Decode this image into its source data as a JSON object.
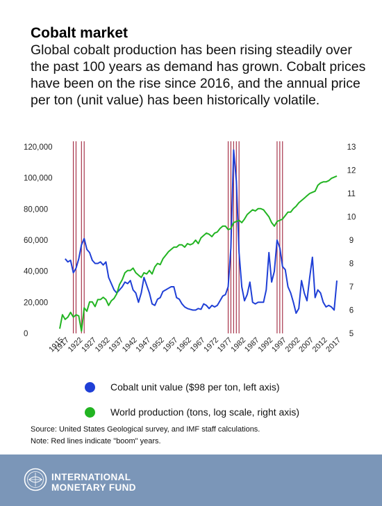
{
  "header": {
    "title": "Cobalt market",
    "subtitle": "Global cobalt production has been rising steadily over the past 100 years as demand has grown. Cobalt prices have been on the rise since 2016, and the annual price per ton (unit value) has been historically volatile."
  },
  "legend": {
    "unit_value_label": "Cobalt unit value ($98 per ton, left axis)",
    "production_label": "World production (tons, log scale, right axis)"
  },
  "notes": {
    "source": "Source: United States Geological survey, and IMF staff calculations.",
    "note": "Note: Red lines indicate \"boom\" years."
  },
  "footer": {
    "org_line1": "INTERNATIONAL",
    "org_line2": "MONETARY FUND",
    "logo_icon": "imf-seal-icon"
  },
  "colors": {
    "unit_value": "#1f3fd6",
    "production": "#22b422",
    "boom_lines": "#a0243c",
    "footer_bg": "#7b96b8"
  },
  "chart_data": {
    "type": "line",
    "title": "",
    "xlabel": "",
    "ylabel_left": "",
    "ylabel_right": "",
    "xlim": [
      1915,
      2017
    ],
    "x_tick_labels": [
      "1915",
      "1917",
      "1922",
      "1927",
      "1932",
      "1937",
      "1942",
      "1947",
      "1952",
      "1957",
      "1962",
      "1967",
      "1972",
      "1977",
      "1982",
      "1987",
      "1992",
      "1997",
      "2002",
      "2007",
      "2012",
      "2017"
    ],
    "y_left": {
      "min": 0,
      "max": 120000,
      "ticks": [
        0,
        20000,
        40000,
        60000,
        80000,
        100000,
        120000
      ],
      "tick_labels": [
        "0",
        "20,000",
        "40,000",
        "60,000",
        "80,000",
        "100,000",
        "120,000"
      ]
    },
    "y_right": {
      "min": 5,
      "max": 13,
      "ticks": [
        5,
        6,
        7,
        8,
        9,
        10,
        11,
        12,
        13
      ],
      "tick_labels": [
        "5",
        "6",
        "7",
        "8",
        "9",
        "10",
        "11",
        "12",
        "13"
      ]
    },
    "boom_years": [
      1920,
      1921,
      1923,
      1924,
      1977,
      1978,
      1979,
      1980,
      1981,
      1995,
      1996,
      1997
    ],
    "series": [
      {
        "name": "Cobalt unit value ($98 per ton, left axis)",
        "axis": "left",
        "points": [
          [
            1917,
            48000
          ],
          [
            1918,
            46000
          ],
          [
            1919,
            47000
          ],
          [
            1920,
            39000
          ],
          [
            1921,
            42000
          ],
          [
            1922,
            48000
          ],
          [
            1923,
            57000
          ],
          [
            1924,
            61000
          ],
          [
            1925,
            54000
          ],
          [
            1926,
            52000
          ],
          [
            1927,
            47000
          ],
          [
            1928,
            45000
          ],
          [
            1929,
            45000
          ],
          [
            1930,
            46000
          ],
          [
            1931,
            44000
          ],
          [
            1932,
            46000
          ],
          [
            1933,
            36000
          ],
          [
            1934,
            32000
          ],
          [
            1935,
            28000
          ],
          [
            1936,
            26000
          ],
          [
            1937,
            28000
          ],
          [
            1938,
            30000
          ],
          [
            1939,
            33000
          ],
          [
            1940,
            32000
          ],
          [
            1941,
            34000
          ],
          [
            1942,
            28000
          ],
          [
            1943,
            26000
          ],
          [
            1944,
            20000
          ],
          [
            1945,
            26000
          ],
          [
            1946,
            36000
          ],
          [
            1947,
            31000
          ],
          [
            1948,
            26000
          ],
          [
            1949,
            19000
          ],
          [
            1950,
            18000
          ],
          [
            1951,
            22000
          ],
          [
            1952,
            23000
          ],
          [
            1953,
            27000
          ],
          [
            1954,
            28000
          ],
          [
            1955,
            29000
          ],
          [
            1956,
            30000
          ],
          [
            1957,
            30000
          ],
          [
            1958,
            23000
          ],
          [
            1959,
            22000
          ],
          [
            1960,
            19000
          ],
          [
            1961,
            17000
          ],
          [
            1962,
            16000
          ],
          [
            1963,
            15500
          ],
          [
            1964,
            15000
          ],
          [
            1965,
            15000
          ],
          [
            1966,
            16000
          ],
          [
            1967,
            15500
          ],
          [
            1968,
            19000
          ],
          [
            1969,
            18000
          ],
          [
            1970,
            16000
          ],
          [
            1971,
            18000
          ],
          [
            1972,
            17000
          ],
          [
            1973,
            18000
          ],
          [
            1974,
            21000
          ],
          [
            1975,
            24000
          ],
          [
            1976,
            25000
          ],
          [
            1977,
            30000
          ],
          [
            1978,
            55000
          ],
          [
            1979,
            118000
          ],
          [
            1980,
            98000
          ],
          [
            1981,
            52000
          ],
          [
            1982,
            30000
          ],
          [
            1983,
            21000
          ],
          [
            1984,
            25000
          ],
          [
            1985,
            33000
          ],
          [
            1986,
            20000
          ],
          [
            1987,
            19000
          ],
          [
            1988,
            20000
          ],
          [
            1989,
            20000
          ],
          [
            1990,
            20000
          ],
          [
            1991,
            28000
          ],
          [
            1992,
            52000
          ],
          [
            1993,
            33000
          ],
          [
            1994,
            40000
          ],
          [
            1995,
            60000
          ],
          [
            1996,
            55000
          ],
          [
            1997,
            43000
          ],
          [
            1998,
            41000
          ],
          [
            1999,
            30000
          ],
          [
            2000,
            26000
          ],
          [
            2001,
            20000
          ],
          [
            2002,
            13000
          ],
          [
            2003,
            16000
          ],
          [
            2004,
            34000
          ],
          [
            2005,
            26000
          ],
          [
            2006,
            21000
          ],
          [
            2007,
            36000
          ],
          [
            2008,
            49000
          ],
          [
            2009,
            23000
          ],
          [
            2010,
            28000
          ],
          [
            2011,
            26000
          ],
          [
            2012,
            20000
          ],
          [
            2013,
            17000
          ],
          [
            2014,
            18000
          ],
          [
            2015,
            17000
          ],
          [
            2016,
            15000
          ],
          [
            2017,
            34000
          ]
        ]
      },
      {
        "name": "World production (tons, log scale, right axis)",
        "axis": "right",
        "points": [
          [
            1915,
            5.2
          ],
          [
            1916,
            5.8
          ],
          [
            1917,
            5.6
          ],
          [
            1918,
            5.7
          ],
          [
            1919,
            5.9
          ],
          [
            1920,
            5.7
          ],
          [
            1921,
            5.8
          ],
          [
            1922,
            5.75
          ],
          [
            1923,
            5.1
          ],
          [
            1924,
            6.1
          ],
          [
            1925,
            5.95
          ],
          [
            1926,
            6.35
          ],
          [
            1927,
            6.35
          ],
          [
            1928,
            6.15
          ],
          [
            1929,
            6.45
          ],
          [
            1930,
            6.45
          ],
          [
            1931,
            6.55
          ],
          [
            1932,
            6.45
          ],
          [
            1933,
            6.2
          ],
          [
            1934,
            6.4
          ],
          [
            1935,
            6.5
          ],
          [
            1936,
            6.7
          ],
          [
            1937,
            7.1
          ],
          [
            1938,
            7.3
          ],
          [
            1939,
            7.6
          ],
          [
            1940,
            7.7
          ],
          [
            1941,
            7.7
          ],
          [
            1942,
            7.8
          ],
          [
            1943,
            7.6
          ],
          [
            1944,
            7.5
          ],
          [
            1945,
            7.4
          ],
          [
            1946,
            7.6
          ],
          [
            1947,
            7.55
          ],
          [
            1948,
            7.7
          ],
          [
            1949,
            7.55
          ],
          [
            1950,
            7.85
          ],
          [
            1951,
            8.0
          ],
          [
            1952,
            7.95
          ],
          [
            1953,
            8.2
          ],
          [
            1954,
            8.35
          ],
          [
            1955,
            8.5
          ],
          [
            1956,
            8.6
          ],
          [
            1957,
            8.7
          ],
          [
            1958,
            8.7
          ],
          [
            1959,
            8.8
          ],
          [
            1960,
            8.8
          ],
          [
            1961,
            8.7
          ],
          [
            1962,
            8.85
          ],
          [
            1963,
            8.8
          ],
          [
            1964,
            8.85
          ],
          [
            1965,
            9.0
          ],
          [
            1966,
            8.85
          ],
          [
            1967,
            9.1
          ],
          [
            1968,
            9.2
          ],
          [
            1969,
            9.3
          ],
          [
            1970,
            9.25
          ],
          [
            1971,
            9.15
          ],
          [
            1972,
            9.3
          ],
          [
            1973,
            9.35
          ],
          [
            1974,
            9.5
          ],
          [
            1975,
            9.6
          ],
          [
            1976,
            9.6
          ],
          [
            1977,
            9.45
          ],
          [
            1978,
            9.5
          ],
          [
            1979,
            9.75
          ],
          [
            1980,
            9.8
          ],
          [
            1981,
            9.85
          ],
          [
            1982,
            9.75
          ],
          [
            1983,
            9.9
          ],
          [
            1984,
            10.1
          ],
          [
            1985,
            10.2
          ],
          [
            1986,
            10.3
          ],
          [
            1987,
            10.25
          ],
          [
            1988,
            10.35
          ],
          [
            1989,
            10.35
          ],
          [
            1990,
            10.3
          ],
          [
            1991,
            10.15
          ],
          [
            1992,
            10.0
          ],
          [
            1993,
            9.75
          ],
          [
            1994,
            9.6
          ],
          [
            1995,
            9.8
          ],
          [
            1996,
            9.85
          ],
          [
            1997,
            9.9
          ],
          [
            1998,
            10.05
          ],
          [
            1999,
            10.2
          ],
          [
            2000,
            10.2
          ],
          [
            2001,
            10.35
          ],
          [
            2002,
            10.45
          ],
          [
            2003,
            10.6
          ],
          [
            2004,
            10.7
          ],
          [
            2005,
            10.8
          ],
          [
            2006,
            10.9
          ],
          [
            2007,
            11.0
          ],
          [
            2008,
            11.05
          ],
          [
            2009,
            11.1
          ],
          [
            2010,
            11.35
          ],
          [
            2011,
            11.45
          ],
          [
            2012,
            11.5
          ],
          [
            2013,
            11.5
          ],
          [
            2014,
            11.55
          ],
          [
            2015,
            11.65
          ],
          [
            2016,
            11.7
          ],
          [
            2017,
            11.75
          ]
        ]
      }
    ],
    "grid": false,
    "legend_position": "bottom"
  }
}
